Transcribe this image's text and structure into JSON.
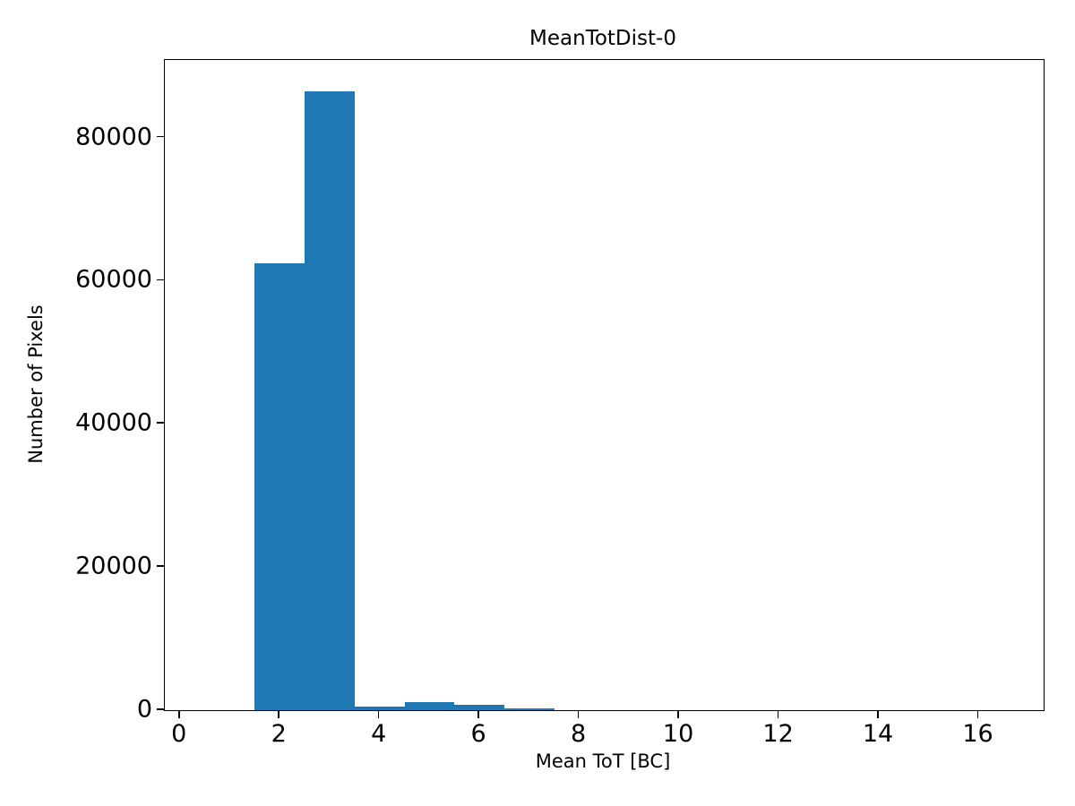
{
  "chart_data": {
    "type": "bar",
    "subtype": "histogram",
    "title": "MeanTotDist-0",
    "xlabel": "Mean ToT [BC]",
    "ylabel": "Number of Pixels",
    "bar_color": "#1f77b4",
    "axis_color": "#000000",
    "grid": false,
    "legend": null,
    "xlim": [
      -0.3,
      17.3
    ],
    "ylim": [
      0,
      90825
    ],
    "xticks": [
      0,
      2,
      4,
      6,
      8,
      10,
      12,
      14,
      16
    ],
    "yticks": [
      0,
      20000,
      40000,
      60000,
      80000
    ],
    "bin_start": 0.5,
    "bin_width": 1,
    "counts": [
      0,
      62400,
      86500,
      450,
      1150,
      750,
      300,
      0,
      0,
      0,
      0,
      0,
      0,
      0,
      0,
      0
    ]
  }
}
